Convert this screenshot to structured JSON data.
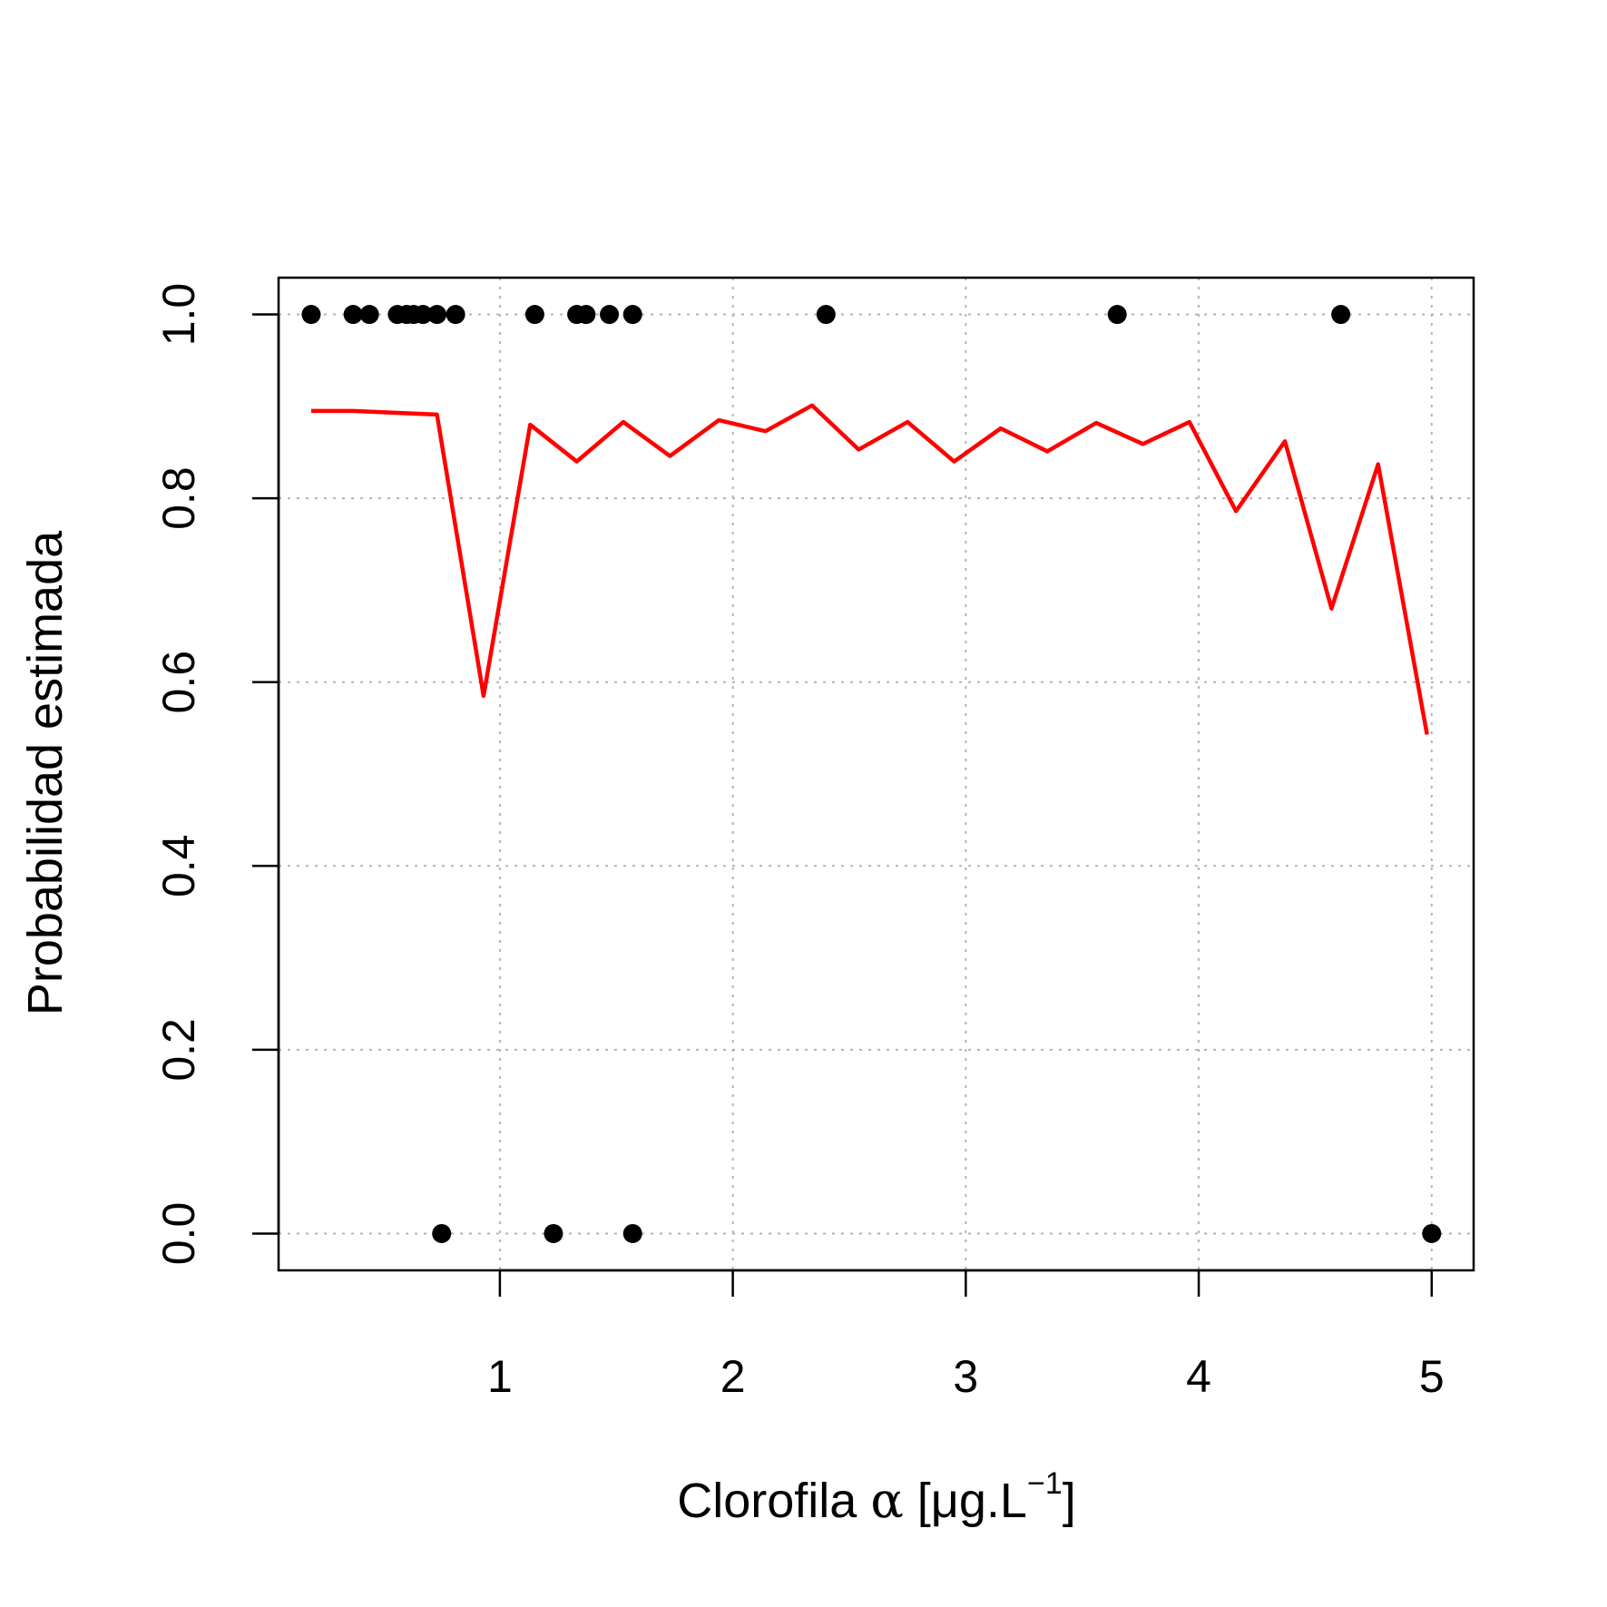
{
  "chart_data": {
    "type": "scatter",
    "title": "",
    "xlabel": {
      "main": "Clorofila ",
      "symbol": "α",
      "bracket_open": " [μg.L",
      "superscript": "−1",
      "bracket_close": "]"
    },
    "ylabel": "Probabilidad estimada",
    "xlim": [
      0.05,
      5.18
    ],
    "ylim": [
      -0.04,
      1.04
    ],
    "x_ticks": [
      1,
      2,
      3,
      4,
      5
    ],
    "x_tick_labels": [
      "1",
      "2",
      "3",
      "4",
      "5"
    ],
    "y_ticks": [
      0.0,
      0.2,
      0.4,
      0.6,
      0.8,
      1.0
    ],
    "y_tick_labels": [
      "0.0",
      "0.2",
      "0.4",
      "0.6",
      "0.8",
      "1.0"
    ],
    "grid": true,
    "series": [
      {
        "type": "points",
        "color": "#000000",
        "x": [
          0.19,
          0.37,
          0.44,
          0.56,
          0.6,
          0.63,
          0.67,
          0.73,
          0.81,
          1.15,
          1.33,
          1.37,
          1.47,
          1.57,
          2.4,
          3.65,
          4.61,
          0.75,
          1.23,
          1.57,
          5.0
        ],
        "y": [
          1,
          1,
          1,
          1,
          1,
          1,
          1,
          1,
          1,
          1,
          1,
          1,
          1,
          1,
          1,
          1,
          1,
          0,
          0,
          0,
          0
        ]
      },
      {
        "type": "line",
        "color": "#ff0000",
        "x": [
          0.19,
          0.37,
          0.73,
          0.93,
          1.13,
          1.33,
          1.53,
          1.73,
          1.94,
          2.14,
          2.34,
          2.54,
          2.75,
          2.95,
          3.15,
          3.35,
          3.56,
          3.76,
          3.96,
          4.16,
          4.37,
          4.57,
          4.77,
          4.98
        ],
        "y": [
          0.895,
          0.895,
          0.891,
          0.585,
          0.88,
          0.84,
          0.883,
          0.846,
          0.885,
          0.873,
          0.901,
          0.853,
          0.883,
          0.84,
          0.876,
          0.851,
          0.882,
          0.859,
          0.883,
          0.786,
          0.862,
          0.68,
          0.837,
          0.543
        ]
      }
    ]
  }
}
